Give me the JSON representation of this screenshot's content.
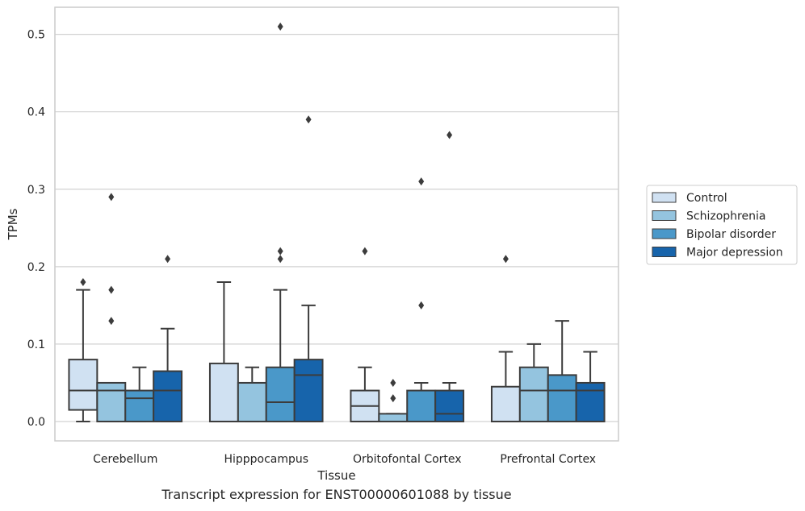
{
  "chart_data": {
    "type": "boxplot",
    "xlabel": "Tissue",
    "ylabel": "TPMs",
    "caption": "Transcript expression for ENST00000601088 by tissue",
    "ylim": [
      -0.025,
      0.535
    ],
    "yticks": [
      0.0,
      0.1,
      0.2,
      0.3,
      0.4,
      0.5
    ],
    "ytick_labels": [
      "0.0",
      "0.1",
      "0.2",
      "0.3",
      "0.4",
      "0.5"
    ],
    "grid": "horizontal",
    "legend_position": "right",
    "categories": [
      "Cerebellum",
      "Hipppocampus",
      "Orbitofontal Cortex",
      "Prefrontal Cortex"
    ],
    "series": [
      {
        "name": "Control",
        "color": "#d0e1f2",
        "boxes": [
          {
            "whislo": 0.0,
            "q1": 0.015,
            "med": 0.04,
            "q3": 0.08,
            "whishi": 0.17,
            "fliers": [
              0.18
            ]
          },
          {
            "whislo": 0.0,
            "q1": 0.0,
            "med": 0.0,
            "q3": 0.075,
            "whishi": 0.18,
            "fliers": []
          },
          {
            "whislo": 0.0,
            "q1": 0.0,
            "med": 0.02,
            "q3": 0.04,
            "whishi": 0.07,
            "fliers": [
              0.22
            ]
          },
          {
            "whislo": 0.0,
            "q1": 0.0,
            "med": 0.0,
            "q3": 0.045,
            "whishi": 0.09,
            "fliers": [
              0.21
            ]
          }
        ]
      },
      {
        "name": "Schizophrenia",
        "color": "#94c4df",
        "boxes": [
          {
            "whislo": 0.0,
            "q1": 0.0,
            "med": 0.04,
            "q3": 0.05,
            "whishi": 0.05,
            "fliers": [
              0.13,
              0.17,
              0.29
            ]
          },
          {
            "whislo": 0.0,
            "q1": 0.0,
            "med": 0.05,
            "q3": 0.05,
            "whishi": 0.07,
            "fliers": []
          },
          {
            "whislo": 0.0,
            "q1": 0.0,
            "med": 0.0,
            "q3": 0.01,
            "whishi": 0.01,
            "fliers": [
              0.03,
              0.05
            ]
          },
          {
            "whislo": 0.0,
            "q1": 0.0,
            "med": 0.04,
            "q3": 0.07,
            "whishi": 0.1,
            "fliers": []
          }
        ]
      },
      {
        "name": "Bipolar disorder",
        "color": "#4a98c9",
        "boxes": [
          {
            "whislo": 0.0,
            "q1": 0.0,
            "med": 0.03,
            "q3": 0.04,
            "whishi": 0.07,
            "fliers": []
          },
          {
            "whislo": 0.0,
            "q1": 0.0,
            "med": 0.025,
            "q3": 0.07,
            "whishi": 0.17,
            "fliers": [
              0.21,
              0.22,
              0.51
            ]
          },
          {
            "whislo": 0.0,
            "q1": 0.0,
            "med": 0.0,
            "q3": 0.04,
            "whishi": 0.05,
            "fliers": [
              0.15,
              0.31
            ]
          },
          {
            "whislo": 0.0,
            "q1": 0.0,
            "med": 0.04,
            "q3": 0.06,
            "whishi": 0.13,
            "fliers": []
          }
        ]
      },
      {
        "name": "Major depression",
        "color": "#1764ab",
        "boxes": [
          {
            "whislo": 0.0,
            "q1": 0.0,
            "med": 0.04,
            "q3": 0.065,
            "whishi": 0.12,
            "fliers": [
              0.21
            ]
          },
          {
            "whislo": 0.0,
            "q1": 0.0,
            "med": 0.06,
            "q3": 0.08,
            "whishi": 0.15,
            "fliers": [
              0.39
            ]
          },
          {
            "whislo": 0.0,
            "q1": 0.0,
            "med": 0.01,
            "q3": 0.04,
            "whishi": 0.05,
            "fliers": [
              0.37
            ]
          },
          {
            "whislo": 0.0,
            "q1": 0.0,
            "med": 0.04,
            "q3": 0.05,
            "whishi": 0.09,
            "fliers": []
          }
        ]
      }
    ]
  }
}
